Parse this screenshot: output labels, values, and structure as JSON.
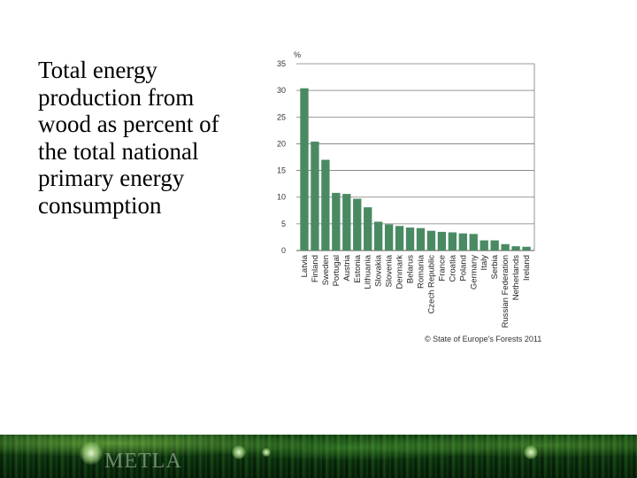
{
  "slide": {
    "title": "Total energy\nproduction from\nwood as percent of\nthe total national\nprimary energy\nconsumption"
  },
  "footer": {
    "logo_text": "METLA"
  },
  "colors": {
    "bar": "#4a8a63",
    "grid": "#7a7a7a",
    "footer_band": "#0f3a12"
  },
  "chart_data": {
    "type": "bar",
    "title": "",
    "xlabel": "",
    "ylabel": "%",
    "ylim": [
      0,
      35
    ],
    "yticks": [
      0,
      5,
      10,
      15,
      20,
      25,
      30,
      35
    ],
    "grid": true,
    "categories": [
      "Latvia",
      "Finland",
      "Sweden",
      "Portugal",
      "Austria",
      "Estonia",
      "Lithuania",
      "Slovakia",
      "Slovenia",
      "Denmark",
      "Belarus",
      "Romania",
      "Czech Republic",
      "France",
      "Croatia",
      "Poland",
      "Germany",
      "Italy",
      "Serbia",
      "Russian Federation",
      "Netherlands",
      "Ireland"
    ],
    "values": [
      30.4,
      20.4,
      17.0,
      10.8,
      10.6,
      9.7,
      8.1,
      5.4,
      4.9,
      4.6,
      4.3,
      4.2,
      3.7,
      3.5,
      3.4,
      3.2,
      3.1,
      1.9,
      1.9,
      1.2,
      0.8,
      0.7
    ],
    "source": "© State of Europe's Forests 2011"
  }
}
